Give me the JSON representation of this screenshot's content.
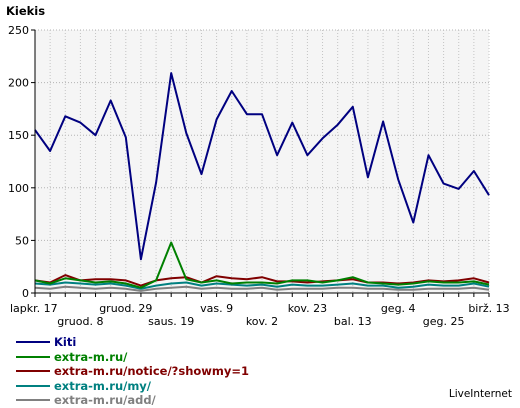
{
  "brand": "LiveInternet",
  "chart_data": {
    "type": "line",
    "ylabel": "Kiekis",
    "ylim": [
      0,
      250
    ],
    "yticks": [
      0,
      50,
      100,
      150,
      200,
      250
    ],
    "grid": true,
    "legend_position": "bottom-left",
    "x_ticks_top_row": [
      {
        "index": 0,
        "label": "lapkr. 17"
      },
      {
        "index": 6,
        "label": "gruod. 29"
      },
      {
        "index": 12,
        "label": "vas. 9"
      },
      {
        "index": 18,
        "label": "kov. 23"
      },
      {
        "index": 24,
        "label": "geg. 4"
      },
      {
        "index": 30,
        "label": "birž. 13"
      }
    ],
    "x_ticks_bottom_row": [
      {
        "index": 3,
        "label": "gruod. 8"
      },
      {
        "index": 9,
        "label": "saus. 19"
      },
      {
        "index": 15,
        "label": "kov. 2"
      },
      {
        "index": 21,
        "label": "bal. 13"
      },
      {
        "index": 27,
        "label": "geg. 25"
      }
    ],
    "point_count": 31,
    "series": [
      {
        "name": "Kiti",
        "color": "#000080",
        "values": [
          155,
          135,
          168,
          162,
          150,
          183,
          148,
          32,
          105,
          209,
          152,
          113,
          165,
          192,
          170,
          170,
          131,
          162,
          131,
          147,
          160,
          177,
          110,
          163,
          108,
          67,
          131,
          104,
          99,
          116,
          93
        ]
      },
      {
        "name": "extra-m.ru/",
        "color": "#008000",
        "values": [
          12,
          9,
          14,
          12,
          10,
          11,
          9,
          5,
          12,
          48,
          13,
          10,
          12,
          9,
          10,
          10,
          9,
          12,
          12,
          10,
          12,
          15,
          10,
          9,
          8,
          9,
          11,
          10,
          10,
          11,
          8
        ]
      },
      {
        "name": "extra-m.ru/notice/?showmy=1",
        "color": "#800000",
        "values": [
          12,
          10,
          17,
          12,
          13,
          13,
          12,
          7,
          12,
          14,
          15,
          10,
          16,
          14,
          13,
          15,
          11,
          11,
          10,
          11,
          12,
          13,
          10,
          10,
          9,
          10,
          12,
          11,
          12,
          14,
          10
        ]
      },
      {
        "name": "extra-m.ru/my/",
        "color": "#008080",
        "values": [
          9,
          8,
          10,
          9,
          8,
          9,
          7,
          4,
          7,
          9,
          10,
          7,
          9,
          8,
          7,
          8,
          6,
          8,
          7,
          7,
          8,
          9,
          7,
          7,
          5,
          6,
          8,
          7,
          7,
          9,
          6
        ]
      },
      {
        "name": "extra-m.ru/add/",
        "color": "#808080",
        "values": [
          5,
          4,
          6,
          5,
          4,
          5,
          4,
          2,
          4,
          5,
          6,
          4,
          5,
          4,
          4,
          5,
          3,
          4,
          4,
          4,
          5,
          5,
          4,
          4,
          3,
          3,
          4,
          4,
          4,
          5,
          3
        ]
      }
    ]
  }
}
